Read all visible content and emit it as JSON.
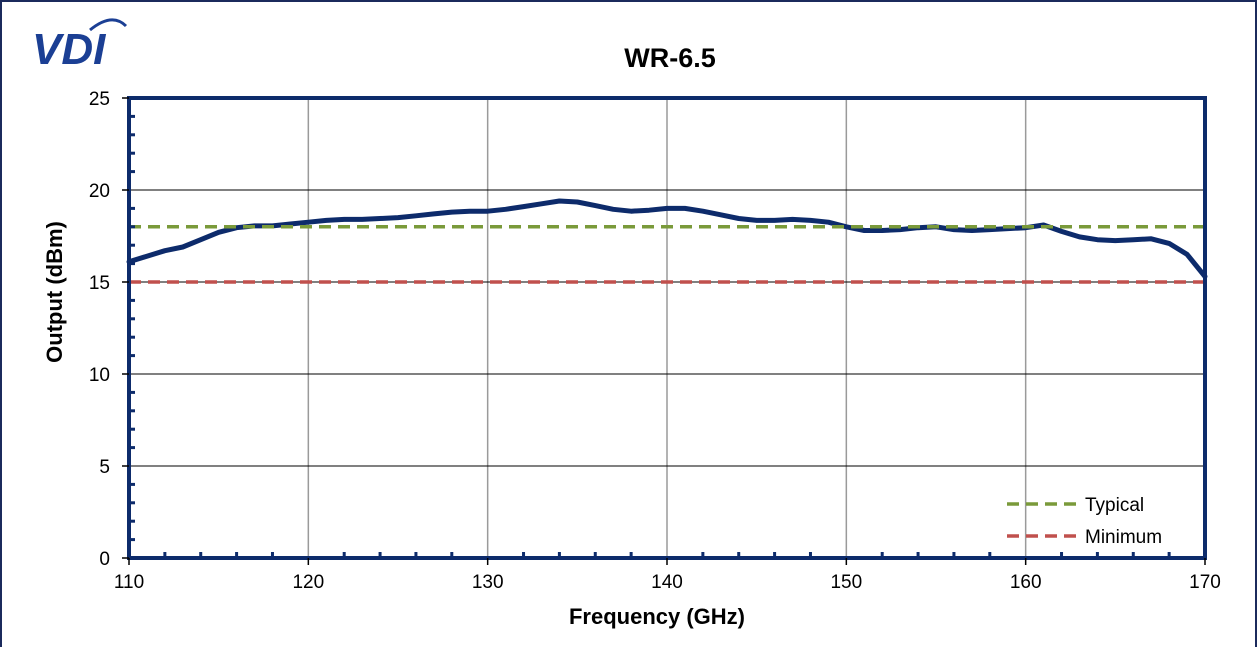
{
  "brand": {
    "logo_text": "VDI",
    "logo_color": "#1b3f94"
  },
  "chart_data": {
    "type": "line",
    "title": "WR-6.5",
    "xlabel": "Frequency (GHz)",
    "ylabel": "Output (dBm)",
    "xlim": [
      110,
      170
    ],
    "ylim": [
      0,
      25
    ],
    "x_ticks": [
      110,
      120,
      130,
      140,
      150,
      160,
      170
    ],
    "y_ticks": [
      0,
      5,
      10,
      15,
      20,
      25
    ],
    "grid": true,
    "legend_position": "bottom-right",
    "series": [
      {
        "color": "#0d2b6b",
        "style": "solid",
        "x": [
          110,
          111,
          112,
          113,
          114,
          115,
          116,
          117,
          118,
          119,
          120,
          121,
          122,
          123,
          124,
          125,
          126,
          127,
          128,
          129,
          130,
          131,
          132,
          133,
          134,
          135,
          136,
          137,
          138,
          139,
          140,
          141,
          142,
          143,
          144,
          145,
          146,
          147,
          148,
          149,
          150,
          151,
          152,
          153,
          154,
          155,
          156,
          157,
          158,
          159,
          160,
          161,
          162,
          163,
          164,
          165,
          166,
          167,
          168,
          169,
          170
        ],
        "y": [
          16.1,
          16.4,
          16.7,
          16.9,
          17.3,
          17.7,
          17.95,
          18.05,
          18.05,
          18.15,
          18.25,
          18.35,
          18.4,
          18.4,
          18.45,
          18.5,
          18.6,
          18.7,
          18.8,
          18.85,
          18.85,
          18.95,
          19.1,
          19.25,
          19.4,
          19.35,
          19.15,
          18.95,
          18.85,
          18.9,
          19.0,
          19.0,
          18.85,
          18.65,
          18.45,
          18.35,
          18.35,
          18.4,
          18.35,
          18.25,
          18.0,
          17.8,
          17.8,
          17.85,
          17.95,
          18.0,
          17.85,
          17.8,
          17.85,
          17.9,
          17.95,
          18.1,
          17.75,
          17.45,
          17.3,
          17.25,
          17.3,
          17.35,
          17.1,
          16.5,
          15.3
        ]
      },
      {
        "name": "Typical",
        "color": "#7a9a3a",
        "style": "dashed",
        "x": [
          110,
          170
        ],
        "y": [
          18,
          18
        ]
      },
      {
        "name": "Minimum",
        "color": "#c0504d",
        "style": "dashed",
        "x": [
          110,
          170
        ],
        "y": [
          15,
          15
        ]
      }
    ]
  }
}
